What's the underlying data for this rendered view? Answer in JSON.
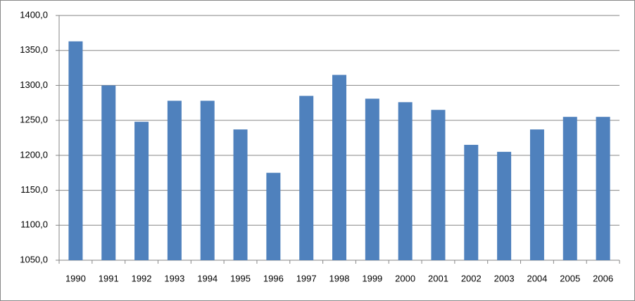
{
  "chart_data": {
    "type": "bar",
    "categories": [
      "1990",
      "1991",
      "1992",
      "1993",
      "1994",
      "1995",
      "1996",
      "1997",
      "1998",
      "1999",
      "2000",
      "2001",
      "2002",
      "2003",
      "2004",
      "2005",
      "2006"
    ],
    "values": [
      1363,
      1300,
      1248,
      1278,
      1278,
      1237,
      1175,
      1285,
      1315,
      1281,
      1276,
      1265,
      1215,
      1205,
      1237,
      1255,
      1255
    ],
    "color": "#4f81bd",
    "ylim": [
      1050,
      1400
    ],
    "yticks": [
      {
        "value": 1050,
        "label": "1050,0"
      },
      {
        "value": 1100,
        "label": "1100,0"
      },
      {
        "value": 1150,
        "label": "1150,0"
      },
      {
        "value": 1200,
        "label": "1200,0"
      },
      {
        "value": 1250,
        "label": "1250,0"
      },
      {
        "value": 1300,
        "label": "1300,0"
      },
      {
        "value": 1350,
        "label": "1350,0"
      },
      {
        "value": 1400,
        "label": "1400,0"
      }
    ],
    "grid": true
  }
}
